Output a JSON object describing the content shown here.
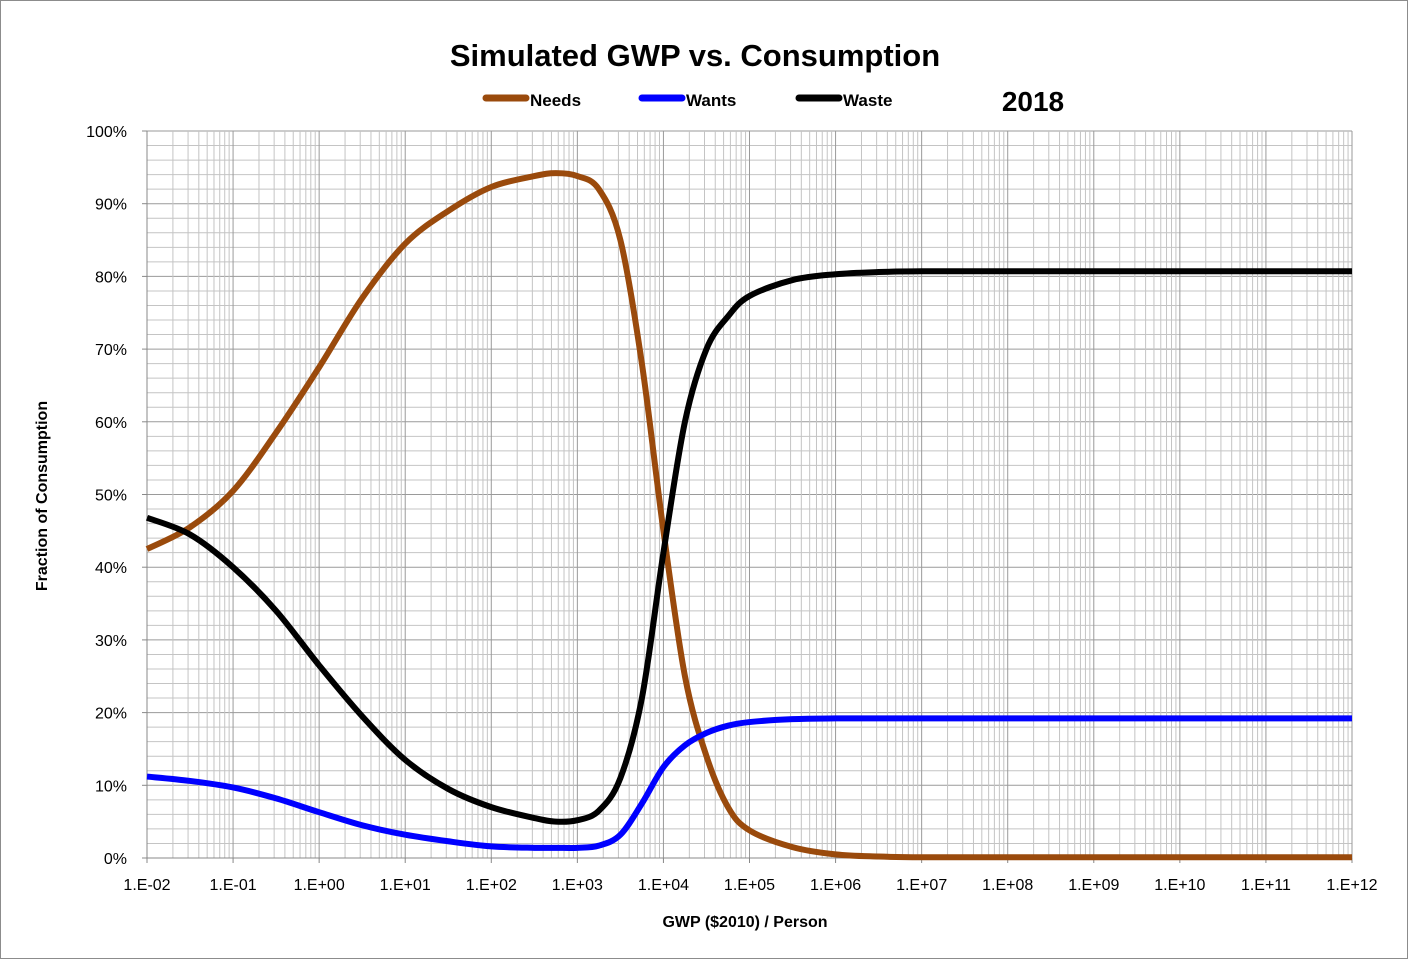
{
  "chart_data": {
    "type": "line",
    "title": "Simulated GWP vs. Consumption",
    "annotation": "2018",
    "xlabel": "GWP ($2010) / Person",
    "ylabel": "Fraction of Consumption",
    "x_scale": "log",
    "xlim": [
      0.01,
      1000000000000.0
    ],
    "ylim": [
      0,
      100
    ],
    "grid": true,
    "legend": "top",
    "x_tick_labels": [
      "1.E-02",
      "1.E-01",
      "1.E+00",
      "1.E+01",
      "1.E+02",
      "1.E+03",
      "1.E+04",
      "1.E+05",
      "1.E+06",
      "1.E+07",
      "1.E+08",
      "1.E+09",
      "1.E+10",
      "1.E+11",
      "1.E+12"
    ],
    "y_tick_labels": [
      "0%",
      "10%",
      "20%",
      "30%",
      "40%",
      "50%",
      "60%",
      "70%",
      "80%",
      "90%",
      "100%"
    ],
    "x": [
      0.01,
      0.0316,
      0.1,
      0.316,
      1,
      3.16,
      10,
      31.6,
      100,
      316,
      562,
      1000,
      1778,
      3162,
      5623,
      10000,
      17783,
      31623,
      56234,
      100000,
      316228,
      1000000.0,
      3160000.0,
      10000000.0,
      100000000.0,
      1000000000.0,
      10000000000.0,
      100000000000.0,
      1000000000000.0
    ],
    "series": [
      {
        "name": "Needs",
        "color": "#9a4a0c",
        "values": [
          42.5,
          45.5,
          50.5,
          58.5,
          67.5,
          77,
          84.5,
          89,
          92.3,
          93.8,
          94.2,
          93.8,
          92,
          85,
          68,
          45,
          25,
          14,
          7,
          3.8,
          1.5,
          0.5,
          0.2,
          0.1,
          0.1,
          0.1,
          0.1,
          0.1,
          0.1
        ]
      },
      {
        "name": "Wants",
        "color": "#0000ff",
        "values": [
          11.2,
          10.6,
          9.7,
          8.2,
          6.3,
          4.5,
          3.2,
          2.3,
          1.6,
          1.4,
          1.4,
          1.4,
          1.7,
          3.2,
          7.5,
          12.5,
          15.5,
          17.2,
          18.2,
          18.7,
          19.1,
          19.2,
          19.2,
          19.2,
          19.2,
          19.2,
          19.2,
          19.2,
          19.2
        ]
      },
      {
        "name": "Waste",
        "color": "#000000",
        "values": [
          46.8,
          44.5,
          40,
          34,
          26.5,
          19.5,
          13.5,
          9.5,
          7,
          5.5,
          5,
          5.2,
          6.5,
          11,
          22,
          42,
          60,
          70,
          74.5,
          77.3,
          79.5,
          80.3,
          80.6,
          80.7,
          80.7,
          80.7,
          80.7,
          80.7,
          80.7
        ]
      }
    ]
  }
}
